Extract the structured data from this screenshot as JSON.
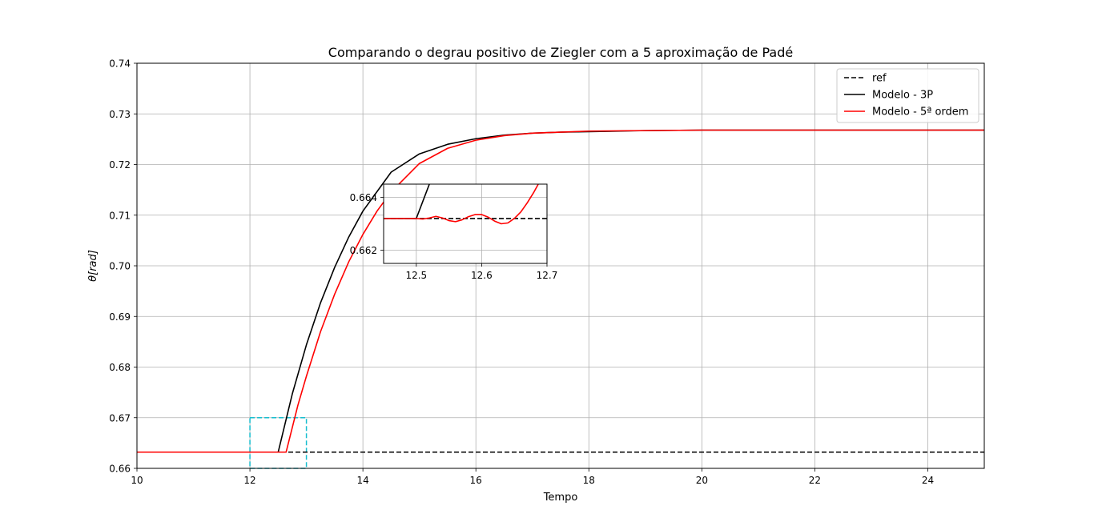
{
  "chart_data": [
    {
      "type": "line",
      "title": "Comparando o degrau positivo de Ziegler com a 5 aproximação de Padé",
      "xlabel": "Tempo",
      "ylabel": "θ[rad]",
      "xlim": [
        10,
        25
      ],
      "ylim": [
        0.66,
        0.74
      ],
      "xticks": [
        10,
        12,
        14,
        16,
        18,
        20,
        22,
        24
      ],
      "xtick_labels": [
        "10",
        "12",
        "14",
        "16",
        "18",
        "20",
        "22",
        "24"
      ],
      "yticks": [
        0.66,
        0.67,
        0.68,
        0.69,
        0.7,
        0.71,
        0.72,
        0.73,
        0.74
      ],
      "ytick_labels": [
        "0.66",
        "0.67",
        "0.68",
        "0.69",
        "0.70",
        "0.71",
        "0.72",
        "0.73",
        "0.74"
      ],
      "grid": true,
      "legend_position": "top-right",
      "series": [
        {
          "name": "ref",
          "color": "#000000",
          "style": "dashed",
          "x": [
            10,
            25
          ],
          "y": [
            0.6632,
            0.6632
          ]
        },
        {
          "name": "Modelo - 3P",
          "color": "#000000",
          "style": "solid",
          "x": [
            10,
            12.5,
            12.75,
            13.0,
            13.25,
            13.5,
            13.75,
            14.0,
            14.5,
            15.0,
            15.5,
            16.0,
            16.5,
            17.0,
            17.5,
            18.0,
            19.0,
            20.0,
            22.0,
            25.0
          ],
          "y": [
            0.6632,
            0.6632,
            0.6747,
            0.6844,
            0.6927,
            0.6997,
            0.7057,
            0.7108,
            0.7185,
            0.7221,
            0.724,
            0.7251,
            0.7258,
            0.7262,
            0.7264,
            0.7265,
            0.7267,
            0.7268,
            0.7268,
            0.7268
          ]
        },
        {
          "name": "Modelo - 5ª ordem",
          "color": "#ff0000",
          "style": "solid",
          "x": [
            10,
            12.64,
            12.85,
            13.0,
            13.25,
            13.5,
            13.75,
            14.0,
            14.25,
            14.5,
            15.0,
            15.5,
            16.0,
            16.5,
            17.0,
            17.5,
            18.0,
            19.0,
            20.0,
            22.0,
            25.0
          ],
          "y": [
            0.6632,
            0.6632,
            0.6725,
            0.6782,
            0.687,
            0.6944,
            0.7008,
            0.7062,
            0.7108,
            0.7146,
            0.7202,
            0.7232,
            0.7248,
            0.7257,
            0.7262,
            0.7264,
            0.7266,
            0.7267,
            0.7268,
            0.7268,
            0.7268
          ]
        }
      ],
      "zoom_box": {
        "color": "#17becf",
        "x_range": [
          12,
          13
        ],
        "y_range": [
          0.66,
          0.67
        ]
      }
    },
    {
      "type": "line",
      "role": "inset",
      "xlim": [
        12.45,
        12.7
      ],
      "ylim": [
        0.6615,
        0.6645
      ],
      "xticks": [
        12.5,
        12.6,
        12.7
      ],
      "xtick_labels": [
        "12.5",
        "12.6",
        "12.7"
      ],
      "yticks": [
        0.662,
        0.664
      ],
      "ytick_labels": [
        "0.662",
        "0.664"
      ],
      "grid": true,
      "series": [
        {
          "name": "ref",
          "color": "#000000",
          "style": "dashed",
          "x": [
            12.45,
            12.7
          ],
          "y": [
            0.6632,
            0.6632
          ]
        },
        {
          "name": "Modelo - 3P",
          "color": "#000000",
          "style": "solid",
          "x": [
            12.45,
            12.5,
            12.52
          ],
          "y": [
            0.6632,
            0.6632,
            0.6645
          ]
        },
        {
          "name": "Modelo - 5ª ordem",
          "color": "#ff0000",
          "style": "solid",
          "x": [
            12.45,
            12.5,
            12.51,
            12.52,
            12.53,
            12.54,
            12.55,
            12.56,
            12.57,
            12.58,
            12.59,
            12.6,
            12.61,
            12.62,
            12.63,
            12.64,
            12.65,
            12.66,
            12.67,
            12.68,
            12.69
          ],
          "y": [
            0.6632,
            0.6632,
            0.66318,
            0.66322,
            0.66328,
            0.66322,
            0.66312,
            0.66308,
            0.66315,
            0.66327,
            0.66335,
            0.66335,
            0.66325,
            0.6631,
            0.663,
            0.66303,
            0.6632,
            0.66345,
            0.6638,
            0.6642,
            0.66465
          ]
        }
      ]
    }
  ]
}
